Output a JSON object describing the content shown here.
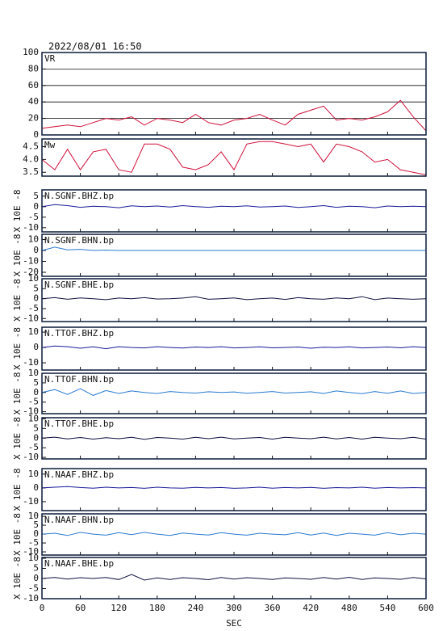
{
  "chart_data": [
    {
      "type": "line",
      "title": "2022/08/01 16:50",
      "label": "VR",
      "ylim": [
        0,
        100
      ],
      "yticks": [
        0,
        20,
        40,
        60,
        80,
        100
      ],
      "grid": true,
      "x": [
        0,
        20,
        40,
        60,
        80,
        100,
        120,
        140,
        160,
        180,
        200,
        220,
        240,
        260,
        280,
        300,
        320,
        340,
        360,
        380,
        400,
        420,
        440,
        460,
        480,
        500,
        520,
        540,
        560,
        580,
        600
      ],
      "series": [
        {
          "color": "#d0103a",
          "values": [
            8,
            10,
            12,
            10,
            15,
            20,
            18,
            22,
            12,
            20,
            18,
            15,
            25,
            15,
            12,
            18,
            20,
            25,
            18,
            12,
            25,
            30,
            35,
            18,
            20,
            18,
            22,
            28,
            42,
            22,
            5
          ]
        }
      ]
    },
    {
      "type": "line",
      "label": "Mw",
      "ylim": [
        3.35,
        4.8
      ],
      "yticks": [
        3.5,
        {
          "value": 4,
          "label": "4.0"
        },
        4.5
      ],
      "x": [
        0,
        20,
        40,
        60,
        80,
        100,
        120,
        140,
        160,
        180,
        200,
        220,
        240,
        260,
        280,
        300,
        320,
        340,
        360,
        380,
        400,
        420,
        440,
        460,
        480,
        500,
        520,
        540,
        560,
        580,
        600
      ],
      "series": [
        {
          "color": "#d0103a",
          "values": [
            4.0,
            3.6,
            4.4,
            3.6,
            4.3,
            4.4,
            3.6,
            3.5,
            4.6,
            4.6,
            4.4,
            3.7,
            3.6,
            3.8,
            4.3,
            3.6,
            4.6,
            4.7,
            4.7,
            4.6,
            4.5,
            4.6,
            3.9,
            4.6,
            4.5,
            4.3,
            3.9,
            4.0,
            3.6,
            3.5,
            3.4
          ]
        }
      ]
    },
    {
      "type": "line",
      "label": "N.SGNF.BHZ.bp",
      "ylabel": "X 10E -8",
      "ylim": [
        -12,
        8
      ],
      "yticks": [
        -10,
        -5,
        0,
        5
      ],
      "x": [
        0,
        20,
        40,
        60,
        80,
        100,
        120,
        140,
        160,
        180,
        200,
        220,
        240,
        260,
        280,
        300,
        320,
        340,
        360,
        380,
        400,
        420,
        440,
        460,
        480,
        500,
        520,
        540,
        560,
        580,
        600
      ],
      "series": [
        {
          "color": "#1a1a9a",
          "values": [
            0,
            1,
            0.5,
            -0.3,
            0.2,
            0,
            -0.5,
            0.4,
            0,
            0.3,
            -0.2,
            0.5,
            0,
            -0.3,
            0.2,
            0,
            0.4,
            -0.2,
            0,
            0.3,
            -0.4,
            0,
            0.5,
            -0.3,
            0.2,
            0,
            -0.5,
            0.3,
            0,
            0.2,
            0
          ]
        }
      ]
    },
    {
      "type": "line",
      "label": "N.SGNF.BHN.bp",
      "ylabel": "X 10E -8",
      "ylim": [
        -23.7,
        14.8
      ],
      "yticks": [
        -20,
        -10,
        0,
        10
      ],
      "x": [
        0,
        20,
        40,
        60,
        80,
        100,
        120,
        140,
        160,
        180,
        200,
        220,
        240,
        260,
        280,
        300,
        320,
        340,
        360,
        380,
        400,
        420,
        440,
        460,
        480,
        500,
        520,
        540,
        560,
        580,
        600
      ],
      "series": [
        {
          "color": "#2a7ad0",
          "values": [
            0,
            3,
            0.5,
            1,
            0,
            0.3,
            0,
            0,
            0,
            0,
            0,
            0,
            0,
            0,
            0,
            0,
            0,
            0,
            0,
            0,
            0,
            0,
            0,
            0,
            0,
            0,
            0,
            0,
            0,
            0,
            0
          ]
        }
      ]
    },
    {
      "type": "line",
      "label": "N.SGNF.BHE.bp",
      "ylabel": "X 10E -8",
      "ylim": [
        -11.5,
        10
      ],
      "yticks": [
        -10,
        -5,
        0,
        5,
        10
      ],
      "x": [
        0,
        20,
        40,
        60,
        80,
        100,
        120,
        140,
        160,
        180,
        200,
        220,
        240,
        260,
        280,
        300,
        320,
        340,
        360,
        380,
        400,
        420,
        440,
        460,
        480,
        500,
        520,
        540,
        560,
        580,
        600
      ],
      "series": [
        {
          "color": "#101040",
          "values": [
            0,
            0.5,
            -0.3,
            0.4,
            0,
            -0.5,
            0.3,
            0,
            0.5,
            -0.2,
            0,
            0.3,
            1,
            -0.3,
            0,
            0.4,
            -0.5,
            0,
            0.3,
            -0.4,
            0.5,
            0,
            -0.3,
            0.4,
            0,
            1,
            -0.5,
            0.3,
            0,
            -0.3,
            0
          ]
        }
      ]
    },
    {
      "type": "line",
      "label": "N.TTOF.BHZ.bp",
      "ylabel": "X 10E -8",
      "ylim": [
        -14.7,
        13.2
      ],
      "yticks": [
        -10,
        0,
        10
      ],
      "x": [
        0,
        20,
        40,
        60,
        80,
        100,
        120,
        140,
        160,
        180,
        200,
        220,
        240,
        260,
        280,
        300,
        320,
        340,
        360,
        380,
        400,
        420,
        440,
        460,
        480,
        500,
        520,
        540,
        560,
        580,
        600
      ],
      "series": [
        {
          "color": "#1a1a9a",
          "values": [
            0,
            1,
            0.5,
            -0.5,
            0.4,
            -0.8,
            0.5,
            0,
            -0.3,
            0.5,
            0,
            -0.4,
            0.3,
            0,
            0.5,
            -0.3,
            0,
            0.4,
            -0.2,
            0,
            0.3,
            -0.5,
            0.2,
            0,
            0.4,
            -0.3,
            0,
            0.3,
            -0.2,
            0.5,
            0
          ]
        }
      ]
    },
    {
      "type": "line",
      "label": "N.TTOF.BHN.bp",
      "ylabel": "X 10E -8",
      "ylim": [
        -11,
        10
      ],
      "yticks": [
        -10,
        -5,
        0,
        5,
        10
      ],
      "x": [
        0,
        20,
        40,
        60,
        80,
        100,
        120,
        140,
        160,
        180,
        200,
        220,
        240,
        260,
        280,
        300,
        320,
        340,
        360,
        380,
        400,
        420,
        440,
        460,
        480,
        500,
        520,
        540,
        560,
        580,
        600
      ],
      "series": [
        {
          "color": "#2a7ad0",
          "values": [
            0,
            1.5,
            -1,
            2,
            -1.5,
            1,
            -0.5,
            0.8,
            0,
            -0.5,
            0.5,
            0,
            -0.3,
            0.4,
            0,
            0.3,
            -0.4,
            0,
            0.5,
            -0.3,
            0,
            0.4,
            -0.5,
            0.8,
            0,
            -0.6,
            0.5,
            -0.4,
            0.8,
            -0.5,
            0
          ]
        }
      ]
    },
    {
      "type": "line",
      "label": "N.TTOF.BHE.bp",
      "ylabel": "X 10E -8",
      "ylim": [
        -10.8,
        10.6
      ],
      "yticks": [
        -10,
        -5,
        0,
        5,
        10
      ],
      "x": [
        0,
        20,
        40,
        60,
        80,
        100,
        120,
        140,
        160,
        180,
        200,
        220,
        240,
        260,
        280,
        300,
        320,
        340,
        360,
        380,
        400,
        420,
        440,
        460,
        480,
        500,
        520,
        540,
        560,
        580,
        600
      ],
      "series": [
        {
          "color": "#101040",
          "values": [
            0,
            0.5,
            -0.4,
            0.3,
            -0.5,
            0.2,
            -0.3,
            0.4,
            -0.6,
            0.3,
            0,
            -0.5,
            0.4,
            -0.3,
            0.5,
            -0.4,
            0,
            0.3,
            -0.5,
            0.4,
            0,
            -0.3,
            0.5,
            -0.4,
            0.3,
            -0.5,
            0.4,
            0,
            -0.3,
            0.4,
            -0.5
          ]
        }
      ]
    },
    {
      "type": "line",
      "label": "N.NAAF.BHZ.bp",
      "ylabel": "X 10E -8",
      "ylim": [
        -16.5,
        14
      ],
      "yticks": [
        -10,
        0,
        10
      ],
      "x": [
        0,
        20,
        40,
        60,
        80,
        100,
        120,
        140,
        160,
        180,
        200,
        220,
        240,
        260,
        280,
        300,
        320,
        340,
        360,
        380,
        400,
        420,
        440,
        460,
        480,
        500,
        520,
        540,
        560,
        580,
        600
      ],
      "series": [
        {
          "color": "#1a1a9a",
          "values": [
            0,
            0.5,
            1,
            0.3,
            -0.2,
            0.5,
            0,
            0.3,
            -0.3,
            0.5,
            0,
            -0.2,
            0.4,
            0,
            0.3,
            -0.3,
            0,
            0.5,
            -0.2,
            0.3,
            0,
            0.4,
            -0.3,
            0.2,
            0,
            0.5,
            -0.2,
            0.3,
            0,
            0.2,
            0
          ]
        }
      ]
    },
    {
      "type": "line",
      "label": "N.NAAF.BHN.bp",
      "ylabel": "X 10E -8",
      "ylim": [
        -11.8,
        11.4
      ],
      "yticks": [
        -10,
        -5,
        0,
        5,
        10
      ],
      "x": [
        0,
        20,
        40,
        60,
        80,
        100,
        120,
        140,
        160,
        180,
        200,
        220,
        240,
        260,
        280,
        300,
        320,
        340,
        360,
        380,
        400,
        420,
        440,
        460,
        480,
        500,
        520,
        540,
        560,
        580,
        600
      ],
      "series": [
        {
          "color": "#2a7ad0",
          "values": [
            0,
            0.5,
            -0.8,
            1,
            0,
            -0.6,
            0.8,
            -0.3,
            1,
            0,
            -0.8,
            0.6,
            0,
            -0.5,
            0.8,
            0,
            -0.6,
            0.5,
            0,
            -0.4,
            0.8,
            -0.5,
            0.6,
            -0.8,
            0.5,
            0,
            -0.6,
            0.8,
            -0.4,
            0.5,
            0
          ]
        }
      ]
    },
    {
      "type": "line",
      "label": "N.NAAF.BHE.bp",
      "ylabel": "X 10E -8",
      "ylim": [
        -10,
        10.4
      ],
      "yticks": [
        -10,
        -5,
        0,
        5,
        10
      ],
      "xlim": [
        0,
        600
      ],
      "xticks": [
        0,
        60,
        120,
        180,
        240,
        300,
        360,
        420,
        480,
        540,
        600
      ],
      "xlabel": "SEC",
      "x": [
        0,
        20,
        40,
        60,
        80,
        100,
        120,
        140,
        160,
        180,
        200,
        220,
        240,
        260,
        280,
        300,
        320,
        340,
        360,
        380,
        400,
        420,
        440,
        460,
        480,
        500,
        520,
        540,
        560,
        580,
        600
      ],
      "series": [
        {
          "color": "#101040",
          "values": [
            0,
            0.5,
            -0.3,
            0.4,
            0,
            0.5,
            -0.5,
            2,
            -0.8,
            0.3,
            -0.5,
            0.4,
            0,
            -0.6,
            0.5,
            -0.3,
            0.4,
            0,
            -0.5,
            0.3,
            0,
            -0.4,
            0.5,
            -0.3,
            0.6,
            -0.5,
            0.3,
            0,
            -0.4,
            0.5,
            -0.2
          ]
        }
      ]
    }
  ]
}
